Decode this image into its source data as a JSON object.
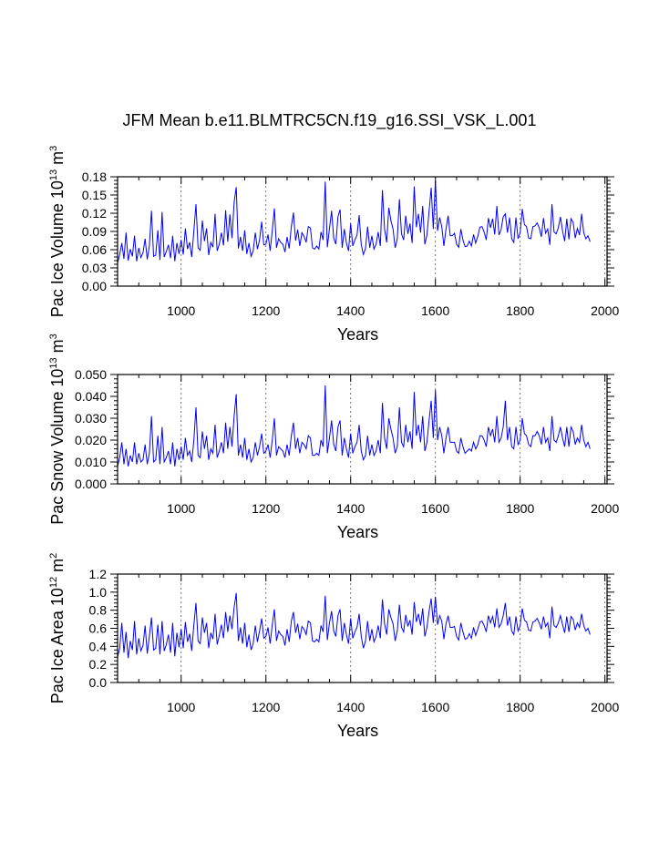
{
  "title": "JFM Mean b.e11.BLMTRC5CN.f19_g16.SSI_VSK_L.001",
  "series_color": "#0000ff",
  "chart_data": [
    {
      "type": "line",
      "title": "",
      "ylabel": "Pac Ice Volume 10",
      "ylabel_exp": "13",
      "ylabel_unit": "m",
      "ylabel_unit_exp": "3",
      "xlabel": "Years",
      "xlim": [
        850,
        2005
      ],
      "ylim": [
        0.0,
        0.18
      ],
      "x_ticks": [
        1000,
        1200,
        1400,
        1600,
        1800,
        2000
      ],
      "x_tick_labels": [
        "1000",
        "1200",
        "1400",
        "1600",
        "1800",
        "2000"
      ],
      "y_ticks": [
        0.0,
        0.03,
        0.06,
        0.09,
        0.12,
        0.15,
        0.18
      ],
      "y_tick_labels": [
        "0.00",
        "0.03",
        "0.06",
        "0.09",
        "0.12",
        "0.15",
        "0.18"
      ],
      "grid": "vertical dashed at 1000, 1200, 1400, 1600, 1800, 2000",
      "series": [
        {
          "x_start": 850,
          "x_end": 2005,
          "x_step": 5,
          "values": [
            0.038,
            0.052,
            0.071,
            0.045,
            0.088,
            0.042,
            0.061,
            0.049,
            0.083,
            0.041,
            0.063,
            0.047,
            0.055,
            0.078,
            0.044,
            0.066,
            0.124,
            0.049,
            0.051,
            0.092,
            0.043,
            0.122,
            0.048,
            0.057,
            0.068,
            0.046,
            0.083,
            0.041,
            0.071,
            0.053,
            0.076,
            0.052,
            0.095,
            0.061,
            0.072,
            0.048,
            0.091,
            0.135,
            0.063,
            0.059,
            0.108,
            0.074,
            0.095,
            0.051,
            0.072,
            0.064,
            0.119,
            0.058,
            0.069,
            0.088,
            0.067,
            0.125,
            0.073,
            0.118,
            0.079,
            0.138,
            0.163,
            0.062,
            0.081,
            0.058,
            0.092,
            0.053,
            0.071,
            0.049,
            0.058,
            0.088,
            0.061,
            0.076,
            0.106,
            0.068,
            0.069,
            0.085,
            0.058,
            0.091,
            0.128,
            0.063,
            0.078,
            0.072,
            0.069,
            0.056,
            0.081,
            0.062,
            0.098,
            0.121,
            0.075,
            0.093,
            0.066,
            0.088,
            0.082,
            0.072,
            0.098,
            0.096,
            0.063,
            0.061,
            0.066,
            0.061,
            0.089,
            0.076,
            0.172,
            0.064,
            0.095,
            0.124,
            0.079,
            0.069,
            0.114,
            0.126,
            0.063,
            0.094,
            0.071,
            0.058,
            0.103,
            0.066,
            0.076,
            0.084,
            0.117,
            0.068,
            0.052,
            0.062,
            0.098,
            0.063,
            0.083,
            0.061,
            0.069,
            0.089,
            0.066,
            0.158,
            0.094,
            0.072,
            0.129,
            0.108,
            0.094,
            0.063,
            0.078,
            0.143,
            0.086,
            0.076,
            0.116,
            0.086,
            0.103,
            0.071,
            0.164,
            0.097,
            0.119,
            0.088,
            0.132,
            0.069,
            0.084,
            0.123,
            0.162,
            0.094,
            0.174,
            0.091,
            0.113,
            0.098,
            0.066,
            0.094,
            0.116,
            0.083,
            0.083,
            0.087,
            0.069,
            0.064,
            0.094,
            0.076,
            0.065,
            0.066,
            0.074,
            0.066,
            0.085,
            0.071,
            0.082,
            0.097,
            0.098,
            0.089,
            0.076,
            0.112,
            0.096,
            0.111,
            0.085,
            0.132,
            0.084,
            0.093,
            0.114,
            0.119,
            0.088,
            0.113,
            0.078,
            0.072,
            0.113,
            0.078,
            0.088,
            0.127,
            0.101,
            0.098,
            0.079,
            0.078,
            0.098,
            0.099,
            0.104,
            0.096,
            0.081,
            0.112,
            0.087,
            0.094,
            0.068,
            0.135,
            0.089,
            0.086,
            0.096,
            0.114,
            0.091,
            0.074,
            0.111,
            0.077,
            0.111,
            0.105,
            0.079,
            0.095,
            0.084,
            0.119,
            0.088,
            0.078,
            0.083,
            0.073
          ]
        }
      ]
    },
    {
      "type": "line",
      "title": "",
      "ylabel": "Pac Snow Volume 10",
      "ylabel_exp": "13",
      "ylabel_unit": "m",
      "ylabel_unit_exp": "3",
      "xlabel": "Years",
      "xlim": [
        850,
        2005
      ],
      "ylim": [
        0.0,
        0.05
      ],
      "x_ticks": [
        1000,
        1200,
        1400,
        1600,
        1800,
        2000
      ],
      "x_tick_labels": [
        "1000",
        "1200",
        "1400",
        "1600",
        "1800",
        "2000"
      ],
      "y_ticks": [
        0.0,
        0.01,
        0.02,
        0.03,
        0.04,
        0.05
      ],
      "y_tick_labels": [
        "0.000",
        "0.010",
        "0.020",
        "0.030",
        "0.040",
        "0.050"
      ],
      "grid": "vertical dashed at 1000, 1200, 1400, 1600, 1800, 2000",
      "series": [
        {
          "x_start": 850,
          "x_end": 2005,
          "x_step": 5,
          "values": [
            0.008,
            0.012,
            0.019,
            0.009,
            0.016,
            0.008,
            0.013,
            0.01,
            0.019,
            0.009,
            0.014,
            0.01,
            0.011,
            0.018,
            0.009,
            0.014,
            0.031,
            0.01,
            0.011,
            0.022,
            0.009,
            0.026,
            0.01,
            0.012,
            0.015,
            0.009,
            0.019,
            0.008,
            0.016,
            0.011,
            0.017,
            0.011,
            0.021,
            0.013,
            0.015,
            0.01,
            0.02,
            0.035,
            0.013,
            0.012,
            0.024,
            0.016,
            0.022,
            0.011,
            0.016,
            0.014,
            0.027,
            0.012,
            0.015,
            0.019,
            0.014,
            0.028,
            0.016,
            0.026,
            0.017,
            0.031,
            0.041,
            0.013,
            0.018,
            0.012,
            0.021,
            0.011,
            0.016,
            0.01,
            0.012,
            0.019,
            0.013,
            0.017,
            0.023,
            0.014,
            0.015,
            0.018,
            0.012,
            0.02,
            0.03,
            0.013,
            0.017,
            0.016,
            0.015,
            0.012,
            0.018,
            0.013,
            0.022,
            0.028,
            0.016,
            0.021,
            0.014,
            0.019,
            0.018,
            0.016,
            0.022,
            0.021,
            0.013,
            0.013,
            0.014,
            0.013,
            0.02,
            0.017,
            0.045,
            0.014,
            0.021,
            0.029,
            0.018,
            0.015,
            0.026,
            0.029,
            0.013,
            0.021,
            0.016,
            0.012,
            0.023,
            0.014,
            0.017,
            0.019,
            0.027,
            0.015,
            0.011,
            0.013,
            0.022,
            0.013,
            0.018,
            0.013,
            0.015,
            0.02,
            0.014,
            0.037,
            0.021,
            0.016,
            0.03,
            0.025,
            0.021,
            0.014,
            0.017,
            0.035,
            0.019,
            0.017,
            0.027,
            0.019,
            0.024,
            0.016,
            0.042,
            0.022,
            0.027,
            0.019,
            0.031,
            0.015,
            0.019,
            0.029,
            0.038,
            0.021,
            0.043,
            0.02,
            0.026,
            0.022,
            0.014,
            0.021,
            0.026,
            0.019,
            0.019,
            0.019,
            0.015,
            0.014,
            0.021,
            0.017,
            0.014,
            0.015,
            0.016,
            0.015,
            0.019,
            0.016,
            0.018,
            0.022,
            0.022,
            0.02,
            0.017,
            0.026,
            0.022,
            0.025,
            0.019,
            0.031,
            0.019,
            0.021,
            0.026,
            0.038,
            0.02,
            0.026,
            0.017,
            0.016,
            0.026,
            0.018,
            0.02,
            0.03,
            0.023,
            0.022,
            0.018,
            0.017,
            0.022,
            0.022,
            0.024,
            0.022,
            0.018,
            0.026,
            0.019,
            0.021,
            0.015,
            0.031,
            0.02,
            0.019,
            0.022,
            0.026,
            0.021,
            0.017,
            0.026,
            0.017,
            0.026,
            0.024,
            0.018,
            0.021,
            0.019,
            0.027,
            0.02,
            0.017,
            0.019,
            0.016
          ]
        }
      ]
    },
    {
      "type": "line",
      "title": "",
      "ylabel": "Pac Ice Area 10",
      "ylabel_exp": "12",
      "ylabel_unit": "m",
      "ylabel_unit_exp": "2",
      "xlabel": "Years",
      "xlim": [
        850,
        2005
      ],
      "ylim": [
        0.0,
        1.2
      ],
      "x_ticks": [
        1000,
        1200,
        1400,
        1600,
        1800,
        2000
      ],
      "x_tick_labels": [
        "1000",
        "1200",
        "1400",
        "1600",
        "1800",
        "2000"
      ],
      "y_ticks": [
        0.0,
        0.2,
        0.4,
        0.6,
        0.8,
        1.0,
        1.2
      ],
      "y_tick_labels": [
        "0.0",
        "0.2",
        "0.4",
        "0.6",
        "0.8",
        "1.0",
        "1.2"
      ],
      "grid": "vertical dashed at 1000, 1200, 1400, 1600, 1800, 2000",
      "series": [
        {
          "x_start": 850,
          "x_end": 2005,
          "x_step": 5,
          "values": [
            0.28,
            0.38,
            0.66,
            0.33,
            0.56,
            0.27,
            0.46,
            0.36,
            0.68,
            0.31,
            0.49,
            0.35,
            0.41,
            0.63,
            0.32,
            0.51,
            0.72,
            0.36,
            0.38,
            0.64,
            0.31,
            0.68,
            0.35,
            0.42,
            0.53,
            0.33,
            0.66,
            0.29,
            0.55,
            0.39,
            0.59,
            0.38,
            0.67,
            0.45,
            0.54,
            0.35,
            0.64,
            0.88,
            0.46,
            0.43,
            0.72,
            0.55,
            0.66,
            0.38,
            0.55,
            0.48,
            0.76,
            0.42,
            0.52,
            0.64,
            0.49,
            0.78,
            0.56,
            0.74,
            0.59,
            0.83,
            0.99,
            0.46,
            0.61,
            0.43,
            0.66,
            0.39,
            0.53,
            0.36,
            0.43,
            0.63,
            0.45,
            0.57,
            0.71,
            0.49,
            0.51,
            0.61,
            0.43,
            0.64,
            0.81,
            0.46,
            0.57,
            0.53,
            0.51,
            0.41,
            0.59,
            0.45,
            0.68,
            0.78,
            0.55,
            0.65,
            0.48,
            0.62,
            0.59,
            0.53,
            0.68,
            0.66,
            0.46,
            0.45,
            0.48,
            0.45,
            0.63,
            0.56,
            0.96,
            0.47,
            0.66,
            0.79,
            0.57,
            0.51,
            0.74,
            0.81,
            0.46,
            0.66,
            0.53,
            0.43,
            0.71,
            0.49,
            0.56,
            0.61,
            0.76,
            0.51,
            0.38,
            0.46,
            0.68,
            0.46,
            0.59,
            0.45,
            0.51,
            0.63,
            0.49,
            0.92,
            0.65,
            0.53,
            0.81,
            0.72,
            0.65,
            0.46,
            0.57,
            0.86,
            0.61,
            0.56,
            0.75,
            0.62,
            0.69,
            0.53,
            0.89,
            0.67,
            0.76,
            0.63,
            0.82,
            0.51,
            0.61,
            0.79,
            0.93,
            0.66,
            0.95,
            0.64,
            0.74,
            0.68,
            0.48,
            0.65,
            0.74,
            0.61,
            0.61,
            0.62,
            0.51,
            0.47,
            0.66,
            0.56,
            0.48,
            0.49,
            0.54,
            0.49,
            0.61,
            0.52,
            0.59,
            0.67,
            0.68,
            0.63,
            0.56,
            0.74,
            0.66,
            0.73,
            0.61,
            0.82,
            0.61,
            0.65,
            0.74,
            0.88,
            0.63,
            0.73,
            0.57,
            0.53,
            0.73,
            0.57,
            0.63,
            0.82,
            0.69,
            0.67,
            0.58,
            0.57,
            0.67,
            0.68,
            0.71,
            0.66,
            0.59,
            0.73,
            0.62,
            0.66,
            0.49,
            0.84,
            0.63,
            0.61,
            0.66,
            0.74,
            0.64,
            0.55,
            0.73,
            0.56,
            0.73,
            0.7,
            0.58,
            0.66,
            0.61,
            0.76,
            0.63,
            0.57,
            0.6,
            0.53
          ]
        }
      ]
    }
  ]
}
